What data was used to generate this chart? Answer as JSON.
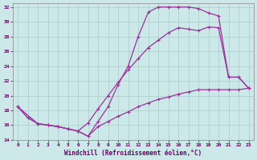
{
  "xlabel": "Windchill (Refroidissement éolien,°C)",
  "bg_color": "#cce8e8",
  "grid_color": "#aacccc",
  "line_color": "#993399",
  "xlim": [
    -0.5,
    23.5
  ],
  "ylim": [
    14,
    32.5
  ],
  "xticks": [
    0,
    1,
    2,
    3,
    4,
    5,
    6,
    7,
    8,
    9,
    10,
    11,
    12,
    13,
    14,
    15,
    16,
    17,
    18,
    19,
    20,
    21,
    22,
    23
  ],
  "yticks": [
    14,
    16,
    18,
    20,
    22,
    24,
    26,
    28,
    30,
    32
  ],
  "series1_x": [
    0,
    1,
    2,
    3,
    4,
    5,
    6,
    7,
    8,
    9,
    10,
    11,
    12,
    13,
    14,
    15,
    16,
    17,
    18,
    19,
    20,
    21,
    22,
    23
  ],
  "series1_y": [
    18.5,
    17.0,
    16.2,
    16.0,
    15.8,
    15.5,
    15.2,
    14.5,
    16.5,
    18.5,
    21.5,
    24.0,
    28.0,
    31.3,
    32.0,
    32.0,
    32.0,
    32.0,
    31.8,
    31.2,
    30.8,
    22.5,
    22.5,
    21.0
  ],
  "series2_x": [
    0,
    2,
    3,
    4,
    5,
    6,
    7,
    8,
    9,
    10,
    11,
    12,
    13,
    14,
    15,
    16,
    17,
    18,
    19,
    20,
    21,
    22,
    23
  ],
  "series2_y": [
    18.5,
    16.2,
    16.0,
    15.8,
    15.5,
    15.2,
    16.3,
    18.2,
    20.0,
    21.8,
    23.5,
    25.0,
    26.5,
    27.5,
    28.5,
    29.2,
    29.0,
    28.8,
    29.3,
    29.2,
    22.5,
    22.5,
    21.0
  ],
  "series3_x": [
    0,
    1,
    2,
    3,
    4,
    5,
    6,
    7,
    8,
    9,
    10,
    11,
    12,
    13,
    14,
    15,
    16,
    17,
    18,
    19,
    20,
    21,
    22,
    23
  ],
  "series3_y": [
    18.5,
    17.0,
    16.2,
    16.0,
    15.8,
    15.5,
    15.2,
    14.5,
    15.8,
    16.5,
    17.2,
    17.8,
    18.5,
    19.0,
    19.5,
    19.8,
    20.2,
    20.5,
    20.8,
    20.8,
    20.8,
    20.8,
    20.8,
    21.0
  ]
}
